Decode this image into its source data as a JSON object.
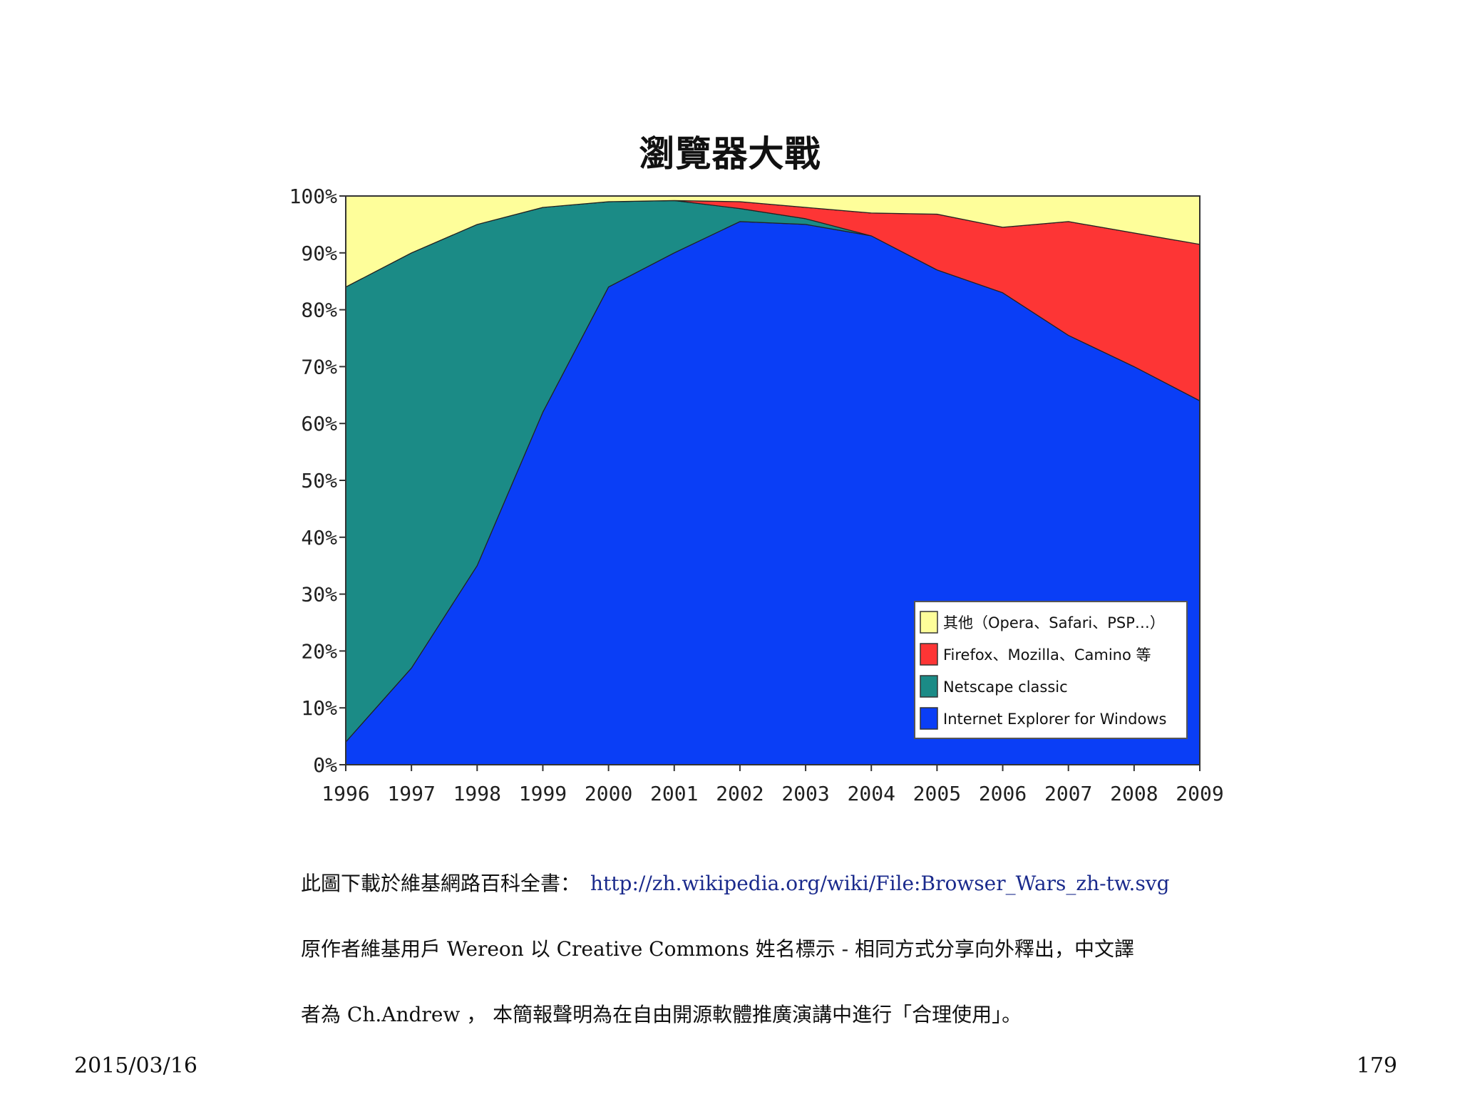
{
  "slide": {
    "date": "2015/03/16",
    "page_number": "179"
  },
  "caption": {
    "line1_prefix": "此圖下載於維基網路百科全書：",
    "line1_link": "http://zh.wikipedia.org/wiki/File:Browser_Wars_zh-tw.svg",
    "line2": "原作者維基用戶 Wereon 以 Creative Commons 姓名標示 - 相同方式分享向外釋出，中文譯",
    "line3": "者為 Ch.Andrew ， 本簡報聲明為在自由開源軟體推廣演講中進行「合理使用」。"
  },
  "colors": {
    "ie": "#0a3ef6",
    "netscape": "#1b8b86",
    "firefox": "#fd3535",
    "other": "#fefe9a",
    "link": "#1a2a8c"
  },
  "chart_data": {
    "type": "area",
    "stacked": true,
    "title": "瀏覽器大戰",
    "xlabel": "",
    "ylabel": "",
    "x": [
      "1996",
      "1997",
      "1998",
      "1999",
      "2000",
      "2001",
      "2002",
      "2003",
      "2004",
      "2005",
      "2006",
      "2007",
      "2008",
      "2009"
    ],
    "ylim": [
      0,
      100
    ],
    "yticks": [
      "0%",
      "10%",
      "20%",
      "30%",
      "40%",
      "50%",
      "60%",
      "70%",
      "80%",
      "90%",
      "100%"
    ],
    "legend_position": "bottom-right",
    "series": [
      {
        "name": "Internet Explorer for Windows",
        "color": "#0a3ef6",
        "values": [
          4,
          17,
          35,
          62,
          84,
          90,
          95.5,
          95,
          93,
          87,
          83,
          75.5,
          70,
          64
        ]
      },
      {
        "name": "Netscape classic",
        "color": "#1b8b86",
        "values": [
          80,
          73,
          60,
          36,
          15,
          9.2,
          2.3,
          1,
          0,
          0,
          0,
          0,
          0,
          0
        ]
      },
      {
        "name": "Firefox、Mozilla、Camino 等",
        "color": "#fd3535",
        "values": [
          0,
          0,
          0,
          0,
          0,
          0,
          1.2,
          2,
          4,
          9.8,
          11.5,
          20,
          23.5,
          27.5
        ]
      },
      {
        "name": "其他（Opera、Safari、PSP…）",
        "color": "#fefe9a",
        "values": [
          16,
          10,
          5,
          2,
          1,
          0.8,
          1,
          2,
          3,
          3.2,
          5.5,
          4.5,
          6.5,
          8.5
        ]
      }
    ]
  }
}
